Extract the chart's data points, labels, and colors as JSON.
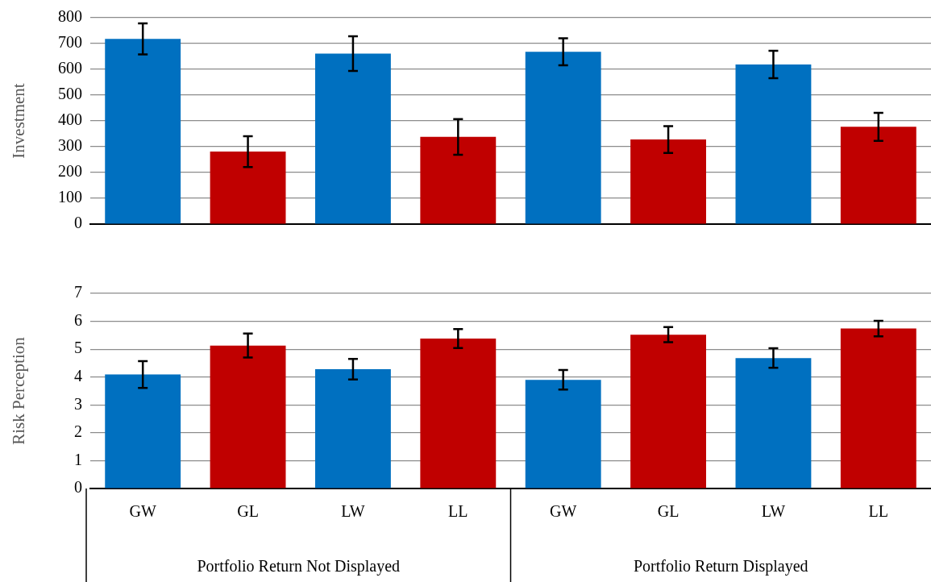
{
  "chart_data": [
    {
      "type": "bar",
      "ylabel": "Investment",
      "categories": [
        null,
        null,
        null,
        null,
        null,
        null,
        null,
        null
      ],
      "values": [
        718,
        281,
        661,
        338,
        668,
        328,
        619,
        377
      ],
      "errors": [
        60,
        60,
        67,
        69,
        52,
        52,
        53,
        54
      ],
      "colors": [
        "#0070c0",
        "#c00000",
        "#0070c0",
        "#c00000",
        "#0070c0",
        "#c00000",
        "#0070c0",
        "#c00000"
      ],
      "ylim": [
        0,
        800
      ],
      "yticks": [
        0,
        100,
        200,
        300,
        400,
        500,
        600,
        700,
        800
      ],
      "grid": "y",
      "tick_labels": "y"
    },
    {
      "type": "bar",
      "ylabel": "Risk Perception",
      "categories": [
        "GW",
        "GL",
        "LW",
        "LL",
        "GW",
        "GL",
        "LW",
        "LL"
      ],
      "values": [
        4.09,
        5.13,
        4.28,
        5.38,
        3.9,
        5.52,
        4.68,
        5.74
      ],
      "errors": [
        0.48,
        0.43,
        0.37,
        0.34,
        0.35,
        0.27,
        0.35,
        0.28
      ],
      "colors": [
        "#0070c0",
        "#c00000",
        "#0070c0",
        "#c00000",
        "#0070c0",
        "#c00000",
        "#0070c0",
        "#c00000"
      ],
      "ylim": [
        0,
        7
      ],
      "yticks": [
        0,
        1,
        2,
        3,
        4,
        5,
        6,
        7
      ],
      "grid": "y",
      "annotations": [
        "Portfolio Return Not Displayed",
        "Portfolio Return Displayed"
      ]
    }
  ]
}
